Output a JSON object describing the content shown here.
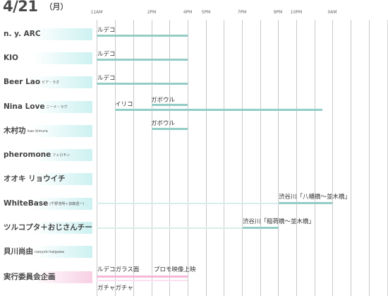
{
  "header": {
    "date": "4/21",
    "weekday": "（月）"
  },
  "time_labels": [
    "11AM",
    "2PM",
    "4PM",
    "5PM",
    "7PM",
    "9PM",
    "10PM",
    "0AM"
  ],
  "rows": [
    {
      "label": "n. y. ARC",
      "sub": ""
    },
    {
      "label": "KIO",
      "sub": ""
    },
    {
      "label": "Beer Lao",
      "sub": "ビア・ラオ"
    },
    {
      "label": "Nina Love",
      "sub": "ニーナ・ラヴ"
    },
    {
      "label": "木村功",
      "sub": "isao kimura"
    },
    {
      "label": "pheromone",
      "sub": "フェロモン"
    },
    {
      "label": "オオキ リョウイチ",
      "sub": ""
    },
    {
      "label": "WhiteBase",
      "sub": "(千野浩明＋齋藤透一)"
    },
    {
      "label": "ツルコプタ＋おじさんチーム",
      "sub": ""
    },
    {
      "label": "貝川尚由",
      "sub": "naoyuki kaigawa"
    },
    {
      "label": "実行委員会企画",
      "sub": ""
    }
  ],
  "events": {
    "ev_arc": "ルデコ",
    "ev_kio": "ルデコ",
    "ev_beerlao": "ルデコ",
    "ev_nina_iriko": "イリコ",
    "ev_nina_gabouru": "ガボウル",
    "ev_kimura_gabouru": "ガボウル",
    "ev_whitebase": "渋谷川「八幡橋～並木橋」",
    "ev_tsurukopta": "渋谷川「稲荷橋～並木橋」",
    "ev_kikaku_glass": "ルデコガラス面",
    "ev_kikaku_promo": "プロモ映像上映",
    "ev_kikaku_gacha": "ガチャガチャ"
  },
  "colors": {
    "bar_teal": "#94cdc6",
    "bar_pink": "#f4b9da",
    "label_teal": "#cdf1f1",
    "label_pink": "#f7cfe3"
  }
}
